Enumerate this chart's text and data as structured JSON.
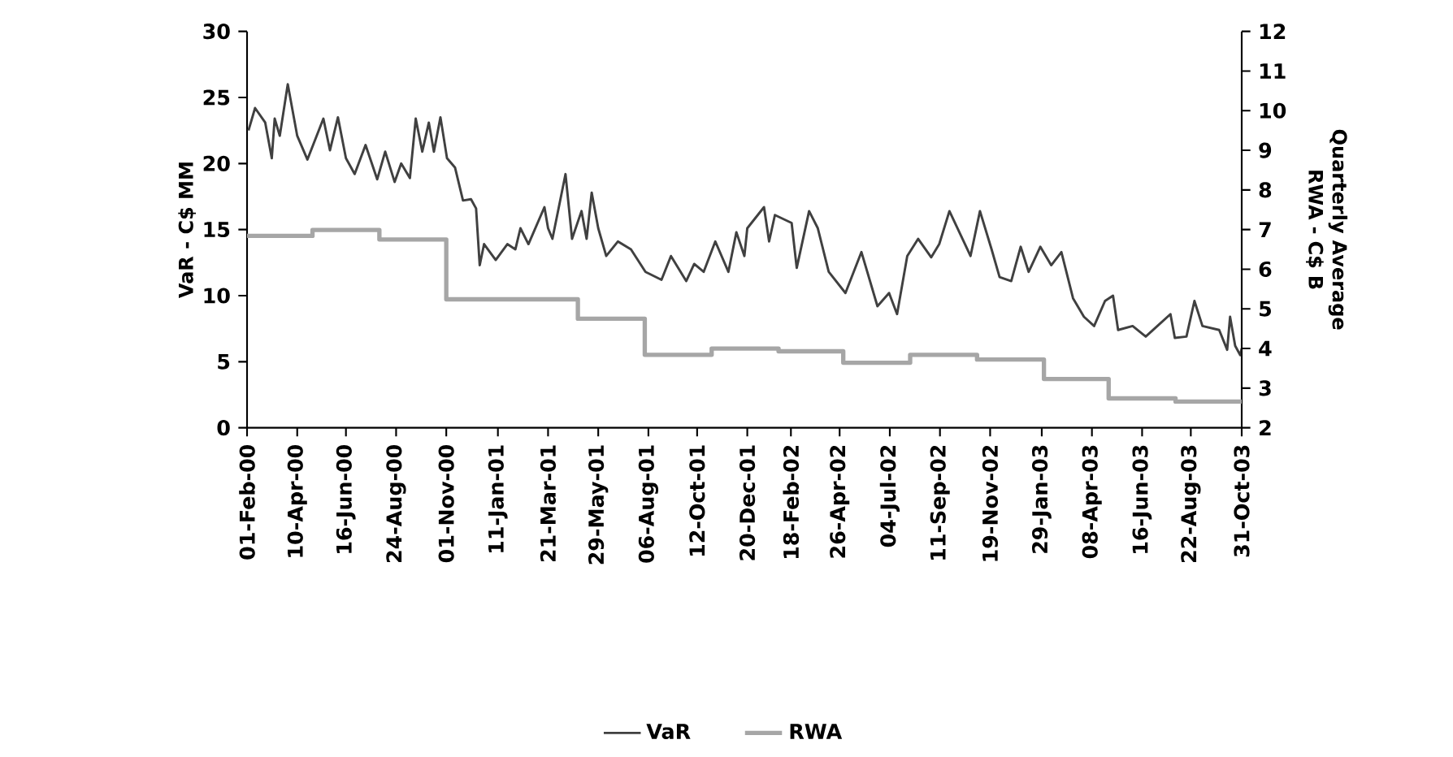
{
  "chart_data": {
    "type": "line",
    "ylabel": "VaR - C$ MM",
    "y2label": "Quarterly Average RWA - C$ B",
    "xlim": [
      "2000-02-01",
      "2003-10-31"
    ],
    "xticks": [
      {
        "value": "2000-02-01",
        "label": "01-Feb-00"
      },
      {
        "value": "2000-04-10",
        "label": "10-Apr-00"
      },
      {
        "value": "2000-06-16",
        "label": "16-Jun-00"
      },
      {
        "value": "2000-08-24",
        "label": "24-Aug-00"
      },
      {
        "value": "2000-11-01",
        "label": "01-Nov-00"
      },
      {
        "value": "2001-01-11",
        "label": "11-Jan-01"
      },
      {
        "value": "2001-03-21",
        "label": "21-Mar-01"
      },
      {
        "value": "2001-05-29",
        "label": "29-May-01"
      },
      {
        "value": "2001-08-06",
        "label": "06-Aug-01"
      },
      {
        "value": "2001-10-12",
        "label": "12-Oct-01"
      },
      {
        "value": "2001-12-20",
        "label": "20-Dec-01"
      },
      {
        "value": "2002-02-18",
        "label": "18-Feb-02"
      },
      {
        "value": "2002-04-26",
        "label": "26-Apr-02"
      },
      {
        "value": "2002-07-04",
        "label": "04-Jul-02"
      },
      {
        "value": "2002-09-11",
        "label": "11-Sep-02"
      },
      {
        "value": "2002-11-19",
        "label": "19-Nov-02"
      },
      {
        "value": "2003-01-29",
        "label": "29-Jan-03"
      },
      {
        "value": "2003-04-08",
        "label": "08-Apr-03"
      },
      {
        "value": "2003-06-16",
        "label": "16-Jun-03"
      },
      {
        "value": "2003-08-22",
        "label": "22-Aug-03"
      },
      {
        "value": "2003-10-31",
        "label": "31-Oct-03"
      }
    ],
    "ylim": [
      0,
      30
    ],
    "yticks": [
      0,
      5,
      10,
      15,
      20,
      25,
      30
    ],
    "y2lim": [
      2,
      12
    ],
    "y2ticks": [
      2,
      3,
      4,
      5,
      6,
      7,
      8,
      9,
      10,
      11,
      12
    ],
    "legend": "bottom",
    "marker": "none",
    "line_style": "solid",
    "grid": false,
    "series": [
      {
        "name": "VaR",
        "color": "#404040",
        "x": [
          "2000-02-03",
          "2000-02-12",
          "2000-02-26",
          "2000-03-06",
          "2000-03-10",
          "2000-03-17",
          "2000-03-28",
          "2000-04-10",
          "2000-04-24",
          "2000-05-16",
          "2000-05-25",
          "2000-06-05",
          "2000-06-16",
          "2000-06-28",
          "2000-07-13",
          "2000-07-29",
          "2000-08-09",
          "2000-08-22",
          "2000-08-31",
          "2000-09-12",
          "2000-09-20",
          "2000-09-29",
          "2000-10-08",
          "2000-10-15",
          "2000-10-24",
          "2000-11-02",
          "2000-11-13",
          "2000-11-24",
          "2000-12-05",
          "2000-12-12",
          "2000-12-17",
          "2000-12-23",
          "2001-01-08",
          "2001-01-24",
          "2001-02-04",
          "2001-02-11",
          "2001-02-22",
          "2001-03-16",
          "2001-03-21",
          "2001-03-27",
          "2001-04-14",
          "2001-04-23",
          "2001-05-06",
          "2001-05-13",
          "2001-05-20",
          "2001-05-29",
          "2001-06-09",
          "2001-06-25",
          "2001-07-13",
          "2001-08-02",
          "2001-08-24",
          "2001-09-06",
          "2001-09-27",
          "2001-10-08",
          "2001-10-21",
          "2001-11-06",
          "2001-11-24",
          "2001-12-05",
          "2001-12-16",
          "2001-12-20",
          "2002-01-12",
          "2002-01-19",
          "2002-01-27",
          "2002-02-19",
          "2002-02-26",
          "2002-03-15",
          "2002-03-27",
          "2002-04-11",
          "2002-05-04",
          "2002-05-26",
          "2002-06-17",
          "2002-07-03",
          "2002-07-14",
          "2002-07-28",
          "2002-08-12",
          "2002-08-30",
          "2002-09-10",
          "2002-09-24",
          "2002-10-12",
          "2002-10-23",
          "2002-11-05",
          "2002-11-21",
          "2002-12-02",
          "2002-12-18",
          "2002-12-31",
          "2003-01-11",
          "2003-01-27",
          "2003-02-11",
          "2003-02-25",
          "2003-03-13",
          "2003-03-28",
          "2003-04-11",
          "2003-04-26",
          "2003-05-07",
          "2003-05-14",
          "2003-06-03",
          "2003-06-21",
          "2003-07-07",
          "2003-07-25",
          "2003-07-31",
          "2003-08-16",
          "2003-08-27",
          "2003-09-07",
          "2003-09-30",
          "2003-10-11",
          "2003-10-15",
          "2003-10-22",
          "2003-10-29",
          "2003-10-31"
        ],
        "values": [
          22.5,
          24.2,
          23.1,
          20.4,
          23.4,
          22.1,
          26.0,
          22.1,
          20.3,
          23.4,
          21.0,
          23.5,
          20.4,
          19.2,
          21.4,
          18.8,
          20.9,
          18.6,
          20.0,
          18.9,
          23.4,
          20.9,
          23.1,
          20.9,
          23.5,
          20.4,
          19.7,
          17.2,
          17.3,
          16.6,
          12.3,
          13.9,
          12.7,
          13.9,
          13.5,
          15.1,
          13.9,
          16.7,
          15.1,
          14.3,
          19.2,
          14.3,
          16.4,
          14.3,
          17.8,
          15.1,
          13.0,
          14.1,
          13.5,
          11.8,
          11.2,
          13.0,
          11.1,
          12.4,
          11.8,
          14.1,
          11.8,
          14.8,
          13.0,
          15.1,
          16.7,
          14.1,
          16.1,
          15.5,
          12.1,
          16.4,
          15.1,
          11.8,
          10.2,
          13.3,
          9.2,
          10.2,
          8.6,
          13.0,
          14.3,
          12.9,
          13.9,
          16.4,
          14.3,
          13.0,
          16.4,
          13.5,
          11.4,
          11.1,
          13.7,
          11.8,
          13.7,
          12.3,
          13.3,
          9.8,
          8.4,
          7.7,
          9.6,
          10.0,
          7.4,
          7.7,
          6.9,
          7.7,
          8.6,
          6.8,
          6.9,
          9.6,
          7.7,
          7.4,
          5.9,
          8.4,
          6.2,
          5.5,
          6.0
        ]
      },
      {
        "name": "RWA",
        "color": "#a6a6a6",
        "type": "step",
        "axis": "y2",
        "x": [
          "2000-02-01",
          "2000-05-01",
          "2000-08-01",
          "2000-11-01",
          "2001-05-01",
          "2001-08-01",
          "2001-11-01",
          "2002-02-01",
          "2002-05-01",
          "2002-08-01",
          "2002-11-01",
          "2003-02-01",
          "2003-05-01",
          "2003-08-01",
          "2003-10-31"
        ],
        "values": [
          6.84,
          6.99,
          6.75,
          5.24,
          4.75,
          3.84,
          4.0,
          3.93,
          3.64,
          3.84,
          3.72,
          3.23,
          2.74,
          2.66,
          2.66
        ]
      }
    ]
  }
}
